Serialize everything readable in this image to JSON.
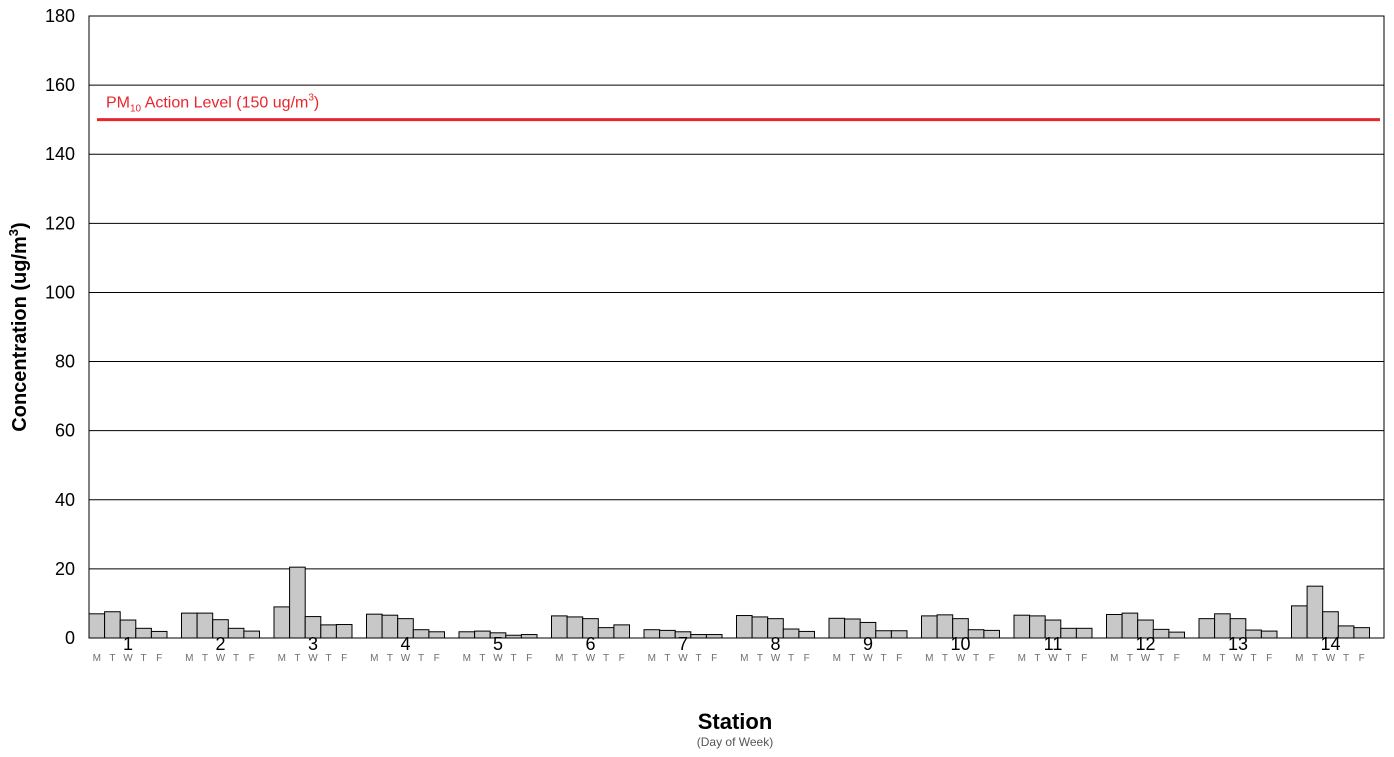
{
  "chart_data": {
    "type": "bar",
    "categories": [
      "1",
      "2",
      "3",
      "4",
      "5",
      "6",
      "7",
      "8",
      "9",
      "10",
      "11",
      "12",
      "13",
      "14"
    ],
    "days": [
      "M",
      "T",
      "W",
      "T",
      "F"
    ],
    "values": [
      [
        7.0,
        7.6,
        5.2,
        2.8,
        1.9
      ],
      [
        7.2,
        7.2,
        5.3,
        2.8,
        2.0
      ],
      [
        9.0,
        20.5,
        6.2,
        3.8,
        3.9
      ],
      [
        6.9,
        6.6,
        5.6,
        2.4,
        1.8
      ],
      [
        1.8,
        2.0,
        1.5,
        0.8,
        1.0
      ],
      [
        6.4,
        6.1,
        5.6,
        3.0,
        3.8
      ],
      [
        2.4,
        2.2,
        1.8,
        1.0,
        1.0
      ],
      [
        6.5,
        6.1,
        5.6,
        2.6,
        1.9
      ],
      [
        5.7,
        5.5,
        4.5,
        2.1,
        2.1
      ],
      [
        6.4,
        6.7,
        5.6,
        2.4,
        2.2
      ],
      [
        6.6,
        6.4,
        5.2,
        2.8,
        2.8
      ],
      [
        6.8,
        7.2,
        5.2,
        2.5,
        1.7
      ],
      [
        5.6,
        7.0,
        5.6,
        2.3,
        2.0
      ],
      [
        9.3,
        15.0,
        7.6,
        3.5,
        3.0
      ]
    ],
    "ylim": [
      0,
      180
    ],
    "yticks": [
      0,
      20,
      40,
      60,
      80,
      100,
      120,
      140,
      160,
      180
    ],
    "ylabel": {
      "main": "Concentration (ug/m",
      "sup": "3",
      "end": ")"
    },
    "xlabel": "Station",
    "xsublabel": "(Day of Week)",
    "reference_line": {
      "value": 150,
      "label_pre": "PM",
      "label_sub": "10",
      "label_mid": " Action Level (150 ug/m",
      "label_sup": "3",
      "label_end": ")",
      "color": "#e8262e"
    },
    "bar_color": "#c8c8c8",
    "grid": true,
    "legend": "none"
  }
}
